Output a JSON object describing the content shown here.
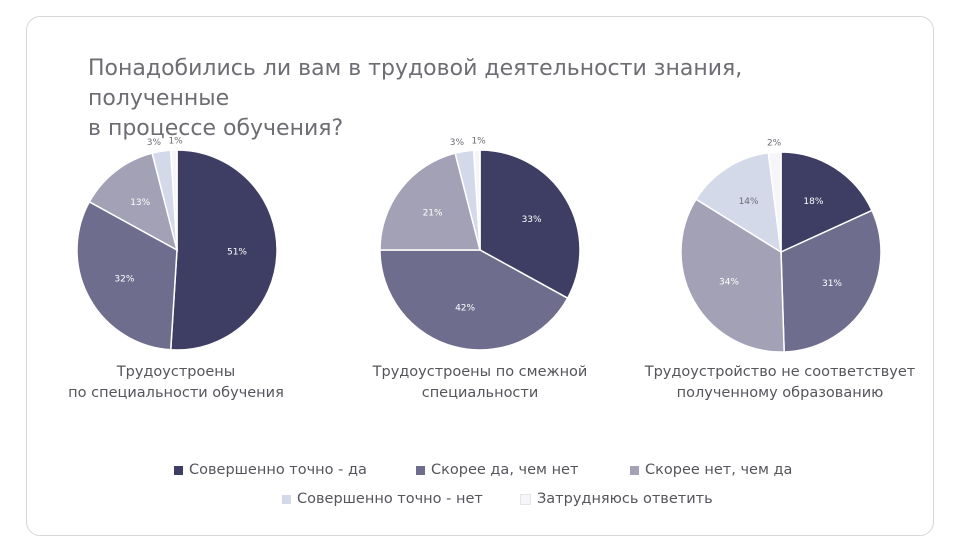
{
  "title": {
    "line1": "Понадобились ли вам в трудовой деятельности знания, полученные",
    "line2": "в процессе обучения?"
  },
  "colors": {
    "c1": "#3e3d63",
    "c2": "#6e6d8d",
    "c3": "#a2a1b5",
    "c4": "#d4d9ea",
    "c5": "#f6f6f8"
  },
  "legend": [
    {
      "label": "Совершенно точно - да",
      "color": "#3e3d63"
    },
    {
      "label": "Скорее да, чем нет",
      "color": "#6e6d8d"
    },
    {
      "label": "Скорее нет, чем да",
      "color": "#a2a1b5"
    },
    {
      "label": "Совершенно точно - нет",
      "color": "#d4d9ea"
    },
    {
      "label": "Затрудняюсь ответить",
      "color": "#f6f6f8"
    }
  ],
  "chart_data": [
    {
      "type": "pie",
      "title_lines": [
        "Трудоустроены",
        "по специальности обучения"
      ],
      "categories": [
        "Совершенно точно - да",
        "Скорее да, чем нет",
        "Скорее нет, чем да",
        "Совершенно точно - нет",
        "Затрудняюсь ответить"
      ],
      "values": [
        51,
        32,
        13,
        3,
        1
      ],
      "labels": [
        "51%",
        "32%",
        "13%",
        "3%",
        "1%"
      ]
    },
    {
      "type": "pie",
      "title_lines": [
        "Трудоустроены по смежной",
        "специальности"
      ],
      "categories": [
        "Совершенно точно - да",
        "Скорее да, чем нет",
        "Скорее нет, чем да",
        "Совершенно точно - нет",
        "Затрудняюсь ответить"
      ],
      "values": [
        33,
        42,
        21,
        3,
        1
      ],
      "labels": [
        "33%",
        "42%",
        "21%",
        "3%",
        "1%"
      ]
    },
    {
      "type": "pie",
      "title_lines": [
        "Трудоустройство не соответствует",
        "полученному образованию"
      ],
      "categories": [
        "Совершенно точно - да",
        "Скорее да, чем нет",
        "Скорее нет, чем да",
        "Совершенно точно - нет",
        "Затрудняюсь ответить"
      ],
      "values": [
        18,
        31,
        34,
        14,
        2
      ],
      "labels": [
        "18%",
        "31%",
        "34%",
        "14%",
        "2%"
      ]
    }
  ]
}
